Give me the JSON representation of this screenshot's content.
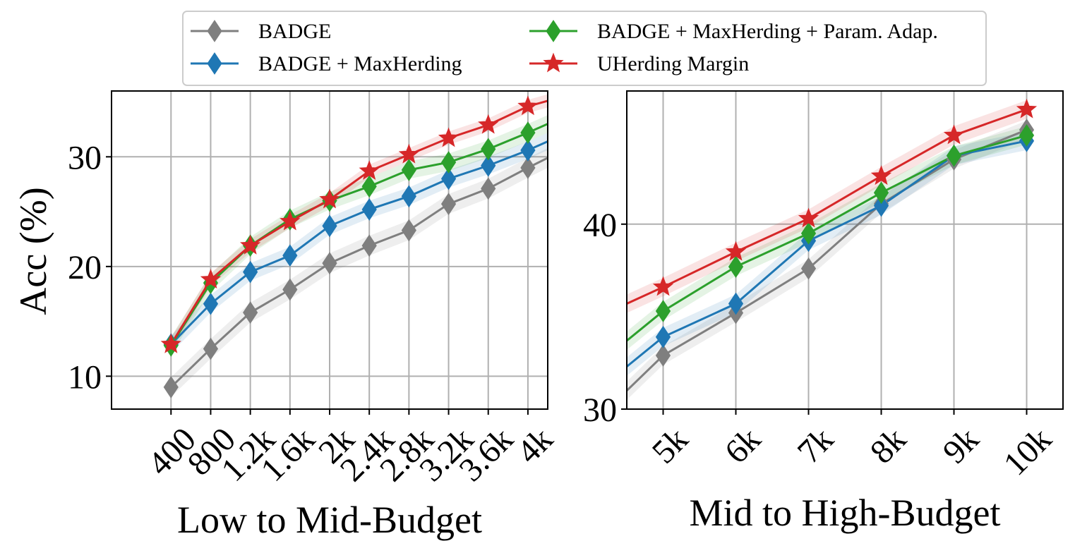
{
  "legend": {
    "items": [
      {
        "label": "BADGE",
        "color": "#7f7f7f",
        "marker": "diamond"
      },
      {
        "label": "BADGE + MaxHerding + Param. Adap.",
        "color": "#2ca02c",
        "marker": "diamond"
      },
      {
        "label": "BADGE + MaxHerding",
        "color": "#1f77b4",
        "marker": "diamond"
      },
      {
        "label": "UHerding Margin",
        "color": "#d62728",
        "marker": "star"
      }
    ]
  },
  "chart_data": [
    {
      "type": "line",
      "xlabel": "Low to Mid-Budget",
      "ylabel": "Acc (%)",
      "categories": [
        "400",
        "800",
        "1.2k",
        "1.6k",
        "2k",
        "2.4k",
        "2.8k",
        "3.2k",
        "3.6k",
        "4k"
      ],
      "x": [
        400,
        800,
        1200,
        1600,
        2000,
        2400,
        2800,
        3200,
        3600,
        4000
      ],
      "xlim": [
        -200,
        4200
      ],
      "line_end": [
        4200,
        {
          "BADGE": 29.9,
          "BADGE + MaxHerding": 31.4,
          "BADGE + MaxHerding + Param. Adap.": 33.0,
          "UHerding Margin": 35.1
        }
      ],
      "ylim": [
        7,
        36
      ],
      "yticks": [
        10,
        20,
        30
      ],
      "grid": true,
      "series": [
        {
          "name": "BADGE",
          "color": "#7f7f7f",
          "marker": "diamond",
          "values": [
            9.0,
            12.5,
            15.8,
            17.9,
            20.3,
            21.9,
            23.3,
            25.7,
            27.1,
            29.0
          ],
          "band": 0.9
        },
        {
          "name": "BADGE + MaxHerding",
          "color": "#1f77b4",
          "marker": "diamond",
          "values": [
            12.9,
            16.6,
            19.5,
            21.0,
            23.7,
            25.2,
            26.4,
            28.0,
            29.2,
            30.6
          ],
          "band": 0.8
        },
        {
          "name": "BADGE + MaxHerding + Param. Adap.",
          "color": "#2ca02c",
          "marker": "diamond",
          "values": [
            12.8,
            18.5,
            21.9,
            24.3,
            26.0,
            27.3,
            28.8,
            29.5,
            30.7,
            32.2
          ],
          "band": 0.8
        },
        {
          "name": "UHerding Margin",
          "color": "#d62728",
          "marker": "star",
          "values": [
            12.9,
            18.8,
            21.9,
            24.1,
            26.1,
            28.7,
            30.2,
            31.7,
            32.9,
            34.6
          ],
          "band": 0.6
        }
      ]
    },
    {
      "type": "line",
      "xlabel": "Mid to High-Budget",
      "ylabel": "",
      "categories": [
        "5k",
        "6k",
        "7k",
        "8k",
        "9k",
        "10k"
      ],
      "x": [
        5000,
        6000,
        7000,
        8000,
        9000,
        10000
      ],
      "xlim": [
        4500,
        10500
      ],
      "line_start": [
        4500,
        {
          "BADGE": 31.0,
          "BADGE + MaxHerding": 32.3,
          "BADGE + MaxHerding + Param. Adap.": 33.7,
          "UHerding Margin": 35.7
        }
      ],
      "ylim": [
        30,
        47.2
      ],
      "yticks": [
        30,
        40
      ],
      "grid": true,
      "series": [
        {
          "name": "BADGE",
          "color": "#7f7f7f",
          "marker": "diamond",
          "values": [
            32.9,
            35.2,
            37.6,
            41.1,
            43.5,
            45.1
          ],
          "band": 0.5
        },
        {
          "name": "BADGE + MaxHerding",
          "color": "#1f77b4",
          "marker": "diamond",
          "values": [
            33.9,
            35.7,
            39.1,
            41.0,
            43.7,
            44.5
          ],
          "band": 0.5
        },
        {
          "name": "BADGE + MaxHerding + Param. Adap.",
          "color": "#2ca02c",
          "marker": "diamond",
          "values": [
            35.3,
            37.7,
            39.5,
            41.7,
            43.7,
            44.8
          ],
          "band": 0.5
        },
        {
          "name": "UHerding Margin",
          "color": "#d62728",
          "marker": "star",
          "values": [
            36.6,
            38.5,
            40.3,
            42.6,
            44.8,
            46.2
          ],
          "band": 0.5
        }
      ]
    }
  ]
}
